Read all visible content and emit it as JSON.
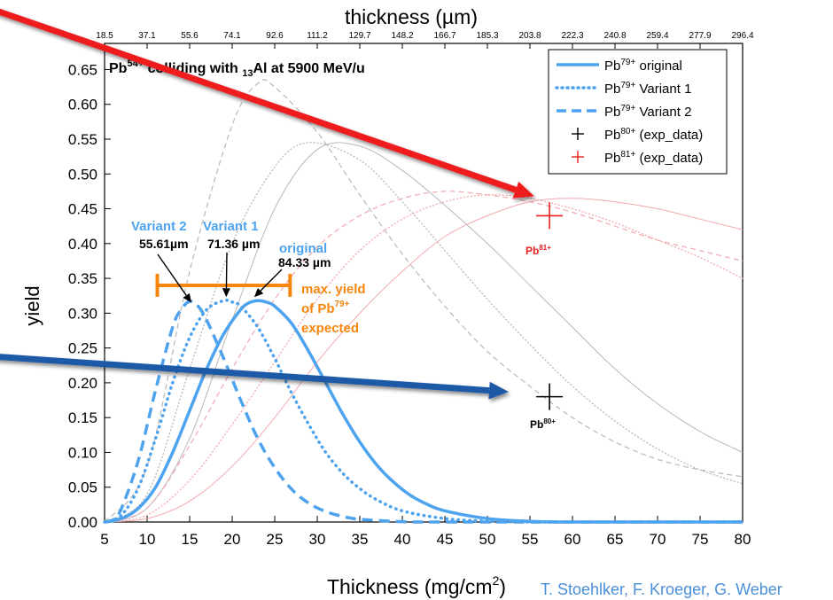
{
  "credit": "T. Stoehlker, F. Kroeger, G. Weber",
  "colors": {
    "variant_blue": "#4ea3ee",
    "faint_gray": "#b8b8b8",
    "faint_pink": "#f3a9ae",
    "arrow_red": "#ee1c1c",
    "arrow_blue": "#1d5aa8",
    "orange": "#f7860f",
    "marker_black": "#000000",
    "marker_red": "#e81e1e"
  },
  "chart_data": {
    "type": "line",
    "title": "Pb54+ colliding with 13Al at 5900 MeV/u",
    "title_parts": {
      "pre": "Pb",
      "charge": "54+",
      "mid": " colliding with ",
      "z": "13",
      "post": "Al at 5900 MeV/u"
    },
    "xlabel": "Thickness (mg/cm",
    "xlabel_sup": "2",
    "xlabel_end": ")",
    "ylabel": "yield",
    "top_xlabel": "thickness (µm)",
    "xlim": [
      5,
      80
    ],
    "ylim": [
      0,
      0.65
    ],
    "x_ticks": [
      "5",
      "10",
      "15",
      "20",
      "25",
      "30",
      "35",
      "40",
      "45",
      "50",
      "55",
      "60",
      "65",
      "70",
      "75",
      "80"
    ],
    "y_ticks": [
      "0.00",
      "0.05",
      "0.10",
      "0.15",
      "0.20",
      "0.25",
      "0.30",
      "0.35",
      "0.40",
      "0.45",
      "0.50",
      "0.55",
      "0.60",
      "0.65"
    ],
    "top_ticks": [
      "18.5",
      "37.1",
      "55.6",
      "74.1",
      "92.6",
      "111.2",
      "129.7",
      "148.2",
      "166.7",
      "185.3",
      "203.8",
      "222.3",
      "240.8",
      "259.4",
      "277.9",
      "296.4"
    ],
    "series": [
      {
        "name": "Pb79+ original",
        "legend_base": "Pb",
        "legend_sup": "79+",
        "legend_tail": " original",
        "style": "solid",
        "x": [
          5,
          7,
          9,
          11,
          13,
          15,
          17,
          19,
          21,
          22,
          23,
          24,
          25,
          27,
          29,
          31,
          33,
          35,
          37,
          39,
          41,
          43,
          45,
          50,
          55,
          60,
          65,
          70,
          75,
          80
        ],
        "y": [
          0,
          0.005,
          0.02,
          0.05,
          0.1,
          0.16,
          0.22,
          0.27,
          0.305,
          0.315,
          0.318,
          0.316,
          0.31,
          0.285,
          0.245,
          0.2,
          0.155,
          0.115,
          0.082,
          0.057,
          0.038,
          0.025,
          0.016,
          0.005,
          0.001,
          0,
          0,
          0,
          0,
          0
        ]
      },
      {
        "name": "Pb79+ Variant 1",
        "legend_base": "Pb",
        "legend_sup": "79+",
        "legend_tail": " Variant 1",
        "style": "dotted",
        "x": [
          5,
          7,
          9,
          11,
          13,
          15,
          17,
          19,
          20,
          21,
          23,
          25,
          27,
          29,
          31,
          33,
          35,
          37,
          40,
          45,
          50,
          55,
          60,
          80
        ],
        "y": [
          0,
          0.01,
          0.05,
          0.12,
          0.2,
          0.265,
          0.305,
          0.318,
          0.316,
          0.31,
          0.28,
          0.235,
          0.185,
          0.14,
          0.1,
          0.07,
          0.048,
          0.032,
          0.016,
          0.005,
          0.0012,
          0,
          0,
          0
        ]
      },
      {
        "name": "Pb79+ Variant 2",
        "legend_base": "Pb",
        "legend_sup": "79+",
        "legend_tail": " Variant 2",
        "style": "dashed",
        "x": [
          5,
          6,
          7,
          9,
          11,
          13,
          14,
          15,
          16,
          17,
          19,
          21,
          23,
          25,
          27,
          29,
          31,
          33,
          35,
          40,
          45,
          80
        ],
        "y": [
          0,
          0.003,
          0.02,
          0.09,
          0.19,
          0.28,
          0.305,
          0.317,
          0.31,
          0.29,
          0.235,
          0.175,
          0.12,
          0.078,
          0.047,
          0.027,
          0.015,
          0.008,
          0.004,
          0.0005,
          0,
          0
        ]
      },
      {
        "name": "Pb80+ reference (thin gray solid)",
        "style": "faint-gray-solid",
        "x": [
          5,
          10,
          15,
          20,
          25,
          30,
          35,
          40,
          45,
          50,
          55,
          60,
          65,
          70,
          75,
          80
        ],
        "y": [
          0,
          0.02,
          0.12,
          0.29,
          0.45,
          0.535,
          0.54,
          0.505,
          0.455,
          0.4,
          0.34,
          0.28,
          0.22,
          0.17,
          0.13,
          0.1
        ]
      },
      {
        "name": "Pb80+ variant 1 (thin gray dotted)",
        "style": "faint-gray-dotted",
        "x": [
          5,
          10,
          15,
          20,
          25,
          29,
          35,
          40,
          45,
          50,
          55,
          60,
          65,
          70,
          75,
          80
        ],
        "y": [
          0,
          0.04,
          0.22,
          0.4,
          0.51,
          0.545,
          0.52,
          0.46,
          0.39,
          0.32,
          0.255,
          0.195,
          0.145,
          0.105,
          0.075,
          0.055
        ]
      },
      {
        "name": "Pb80+ variant 2 (thin gray dashed)",
        "style": "faint-gray-dashed",
        "x": [
          5,
          10,
          15,
          20,
          23,
          25,
          30,
          35,
          40,
          45,
          50,
          55,
          60,
          65,
          70,
          75,
          80
        ],
        "y": [
          0,
          0.08,
          0.36,
          0.57,
          0.63,
          0.625,
          0.56,
          0.47,
          0.385,
          0.31,
          0.245,
          0.195,
          0.15,
          0.115,
          0.09,
          0.075,
          0.065
        ]
      },
      {
        "name": "Pb81+ reference (thin pink solid)",
        "style": "faint-pink-solid",
        "x": [
          5,
          10,
          15,
          20,
          25,
          30,
          35,
          40,
          45,
          50,
          55,
          60,
          65,
          70,
          75,
          80
        ],
        "y": [
          0,
          0.005,
          0.03,
          0.08,
          0.15,
          0.23,
          0.3,
          0.36,
          0.41,
          0.44,
          0.46,
          0.465,
          0.46,
          0.45,
          0.435,
          0.42
        ]
      },
      {
        "name": "Pb81+ variant 1 (thin pink dotted)",
        "style": "faint-pink-dotted",
        "x": [
          5,
          10,
          15,
          20,
          25,
          30,
          35,
          40,
          45,
          50,
          55,
          60,
          65,
          70,
          75,
          80
        ],
        "y": [
          0,
          0.01,
          0.06,
          0.14,
          0.23,
          0.32,
          0.39,
          0.435,
          0.46,
          0.47,
          0.465,
          0.45,
          0.43,
          0.405,
          0.38,
          0.35
        ]
      },
      {
        "name": "Pb81+ variant 2 (thin pink dashed)",
        "style": "faint-pink-dashed",
        "x": [
          5,
          10,
          15,
          20,
          25,
          30,
          35,
          40,
          45,
          50,
          55,
          60,
          65,
          70,
          75,
          80
        ],
        "y": [
          0,
          0.02,
          0.11,
          0.22,
          0.32,
          0.395,
          0.44,
          0.465,
          0.475,
          0.47,
          0.46,
          0.445,
          0.425,
          0.405,
          0.39,
          0.375
        ]
      }
    ],
    "exp_points": [
      {
        "name": "Pb80+ (exp_data)",
        "legend_base": "Pb",
        "legend_sup": "80+",
        "legend_tail": " (exp_data)",
        "x": 57.3,
        "y": 0.18,
        "label_base": "Pb",
        "label_sup": "80+",
        "color": "#000000"
      },
      {
        "name": "Pb81+ (exp_data)",
        "legend_base": "Pb",
        "legend_sup": "81+",
        "legend_tail": " (exp_data)",
        "x": 57.3,
        "y": 0.44,
        "label_base": "Pb",
        "label_sup": "81+",
        "color": "#e81e1e"
      }
    ],
    "annotations": {
      "variant2": {
        "title": "Variant 2",
        "value": "55.61µm",
        "x": 15.2,
        "y": 0.31
      },
      "variant1": {
        "title": "Variant 1",
        "value": "71.36 µm",
        "x": 19.3,
        "y": 0.318
      },
      "original": {
        "title": "original",
        "value": "84.33 µm",
        "x": 22.6,
        "y": 0.318
      },
      "range": {
        "x_start": 11.2,
        "x_end": 26.8,
        "y": 0.34
      },
      "max_yield": {
        "line1": "max. yield",
        "line2_base": "of Pb",
        "line2_sup": "79+",
        "line3": "expected"
      }
    },
    "legend_position": "top-right",
    "grid": false
  }
}
